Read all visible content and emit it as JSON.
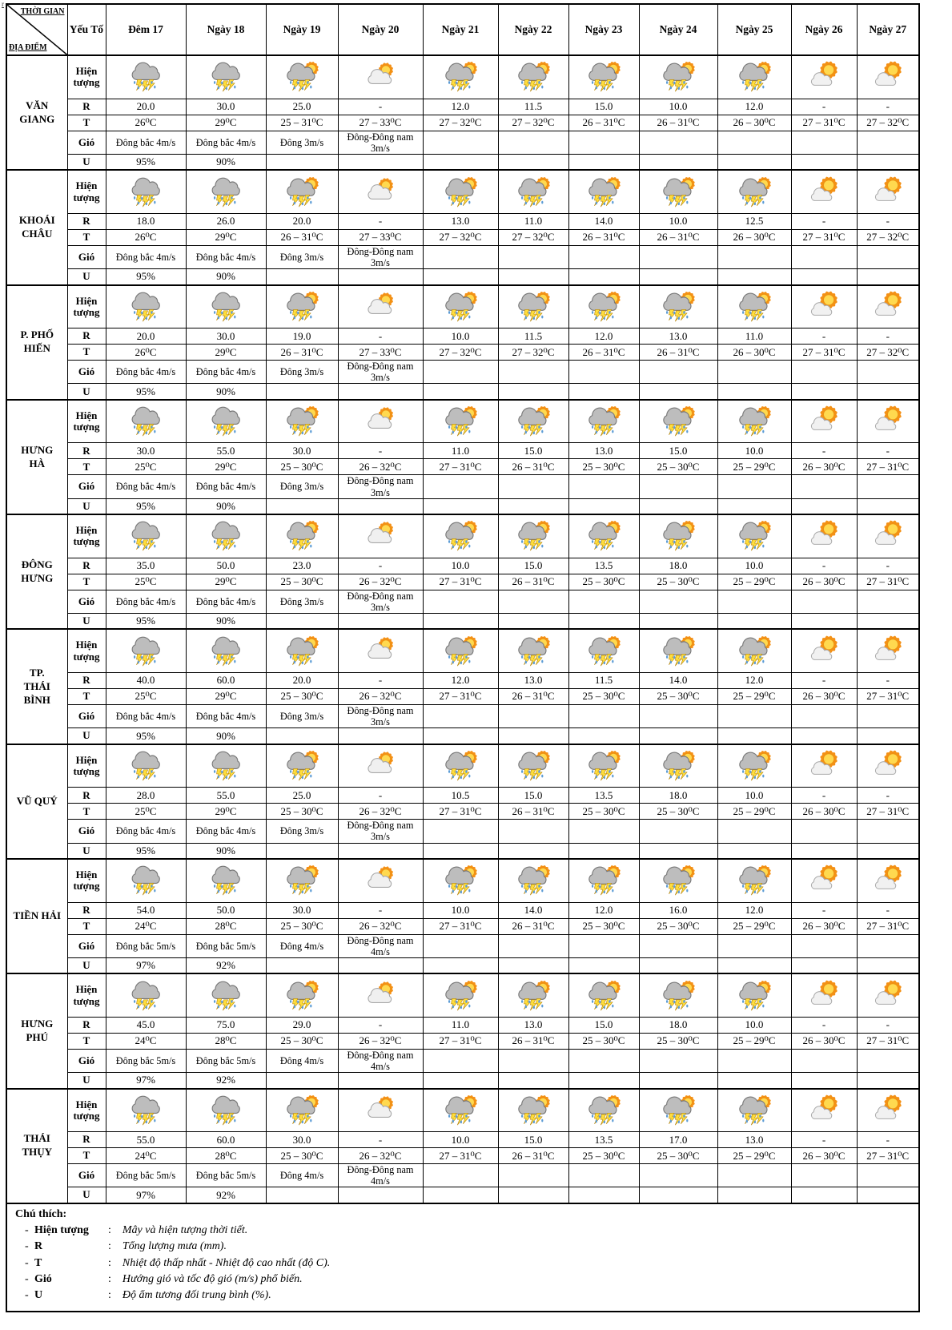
{
  "page": {
    "corner_mark": "r"
  },
  "colors": {
    "border": "#000000",
    "storm_cloud": "#BDBDBD",
    "pale_cloud": "#F0F0F0",
    "lightning": "#FFDE3C",
    "rain_drop": "#5B9BD5",
    "sun_core": "#FFD94F",
    "sun_rays": "#F49116"
  },
  "table": {
    "corner": {
      "top_label": "THỜI GIAN",
      "bottom_label": "ĐỊA ĐIỂM"
    },
    "factor_header": "Yếu Tố",
    "date_headers": [
      "Đêm 17",
      "Ngày 18",
      "Ngày 19",
      "Ngày 20",
      "Ngày 21",
      "Ngày 22",
      "Ngày 23",
      "Ngày 24",
      "Ngày 25",
      "Ngày 26",
      "Ngày 27"
    ],
    "row_labels": {
      "phenomenon": "Hiện\ntượng",
      "rain": "R",
      "temperature": "T",
      "wind": "Gió",
      "humidity": "U"
    },
    "icon_pattern": [
      "storm",
      "storm",
      "storm-sun",
      "cloud-sun",
      "storm-sun",
      "storm-sun",
      "storm-sun",
      "storm-sun",
      "storm-sun",
      "sun-cloud",
      "sun-cloud"
    ],
    "icon_legend": {
      "storm": "dark cloud with rain and lightning",
      "storm-sun": "sun behind dark cloud with rain and lightning",
      "cloud-sun": "sun behind pale cloud",
      "sun-cloud": "sun with small pale cloud"
    },
    "locations": [
      {
        "name": "VĂN\nGIANG",
        "R": [
          "20.0",
          "30.0",
          "25.0",
          "-",
          "12.0",
          "11.5",
          "15.0",
          "10.0",
          "12.0",
          "-",
          "-"
        ],
        "T": [
          "26⁰C",
          "29⁰C",
          "25 – 31⁰C",
          "27 – 33⁰C",
          "27 – 32⁰C",
          "27 – 32⁰C",
          "26 – 31⁰C",
          "26 – 31⁰C",
          "26 – 30⁰C",
          "27 – 31⁰C",
          "27 – 32⁰C"
        ],
        "wind": [
          "Đông bắc 4m/s",
          "Đông bắc 4m/s",
          "Đông 3m/s",
          "Đông-Đông nam\n3m/s",
          "",
          "",
          "",
          "",
          "",
          "",
          ""
        ],
        "U": [
          "95%",
          "90%",
          "",
          "",
          "",
          "",
          "",
          "",
          "",
          "",
          ""
        ]
      },
      {
        "name": "KHOÁI\nCHÂU",
        "R": [
          "18.0",
          "26.0",
          "20.0",
          "-",
          "13.0",
          "11.0",
          "14.0",
          "10.0",
          "12.5",
          "-",
          "-"
        ],
        "T": [
          "26⁰C",
          "29⁰C",
          "26 – 31⁰C",
          "27 – 33⁰C",
          "27 – 32⁰C",
          "27 – 32⁰C",
          "26 – 31⁰C",
          "26 – 31⁰C",
          "26 – 30⁰C",
          "27 – 31⁰C",
          "27 – 32⁰C"
        ],
        "wind": [
          "Đông bắc 4m/s",
          "Đông bắc 4m/s",
          "Đông 3m/s",
          "Đông-Đông nam\n3m/s",
          "",
          "",
          "",
          "",
          "",
          "",
          ""
        ],
        "U": [
          "95%",
          "90%",
          "",
          "",
          "",
          "",
          "",
          "",
          "",
          "",
          ""
        ]
      },
      {
        "name": "P. PHỐ\nHIẾN",
        "R": [
          "20.0",
          "30.0",
          "19.0",
          "-",
          "10.0",
          "11.5",
          "12.0",
          "13.0",
          "11.0",
          "-",
          "-"
        ],
        "T": [
          "26⁰C",
          "29⁰C",
          "26 – 31⁰C",
          "27 – 33⁰C",
          "27 – 32⁰C",
          "27 – 32⁰C",
          "26 – 31⁰C",
          "26 – 31⁰C",
          "26 – 30⁰C",
          "27 – 31⁰C",
          "27 – 32⁰C"
        ],
        "wind": [
          "Đông bắc 4m/s",
          "Đông bắc 4m/s",
          "Đông 3m/s",
          "Đông-Đông nam\n3m/s",
          "",
          "",
          "",
          "",
          "",
          "",
          ""
        ],
        "U": [
          "95%",
          "90%",
          "",
          "",
          "",
          "",
          "",
          "",
          "",
          "",
          ""
        ]
      },
      {
        "name": "HƯNG\nHÀ",
        "R": [
          "30.0",
          "55.0",
          "30.0",
          "-",
          "11.0",
          "15.0",
          "13.0",
          "15.0",
          "10.0",
          "-",
          "-"
        ],
        "T": [
          "25⁰C",
          "29⁰C",
          "25 – 30⁰C",
          "26 – 32⁰C",
          "27 – 31⁰C",
          "26 – 31⁰C",
          "25 – 30⁰C",
          "25 – 30⁰C",
          "25 – 29⁰C",
          "26 – 30⁰C",
          "27 – 31⁰C"
        ],
        "wind": [
          "Đông bắc 4m/s",
          "Đông bắc 4m/s",
          "Đông 3m/s",
          "Đông-Đông nam\n3m/s",
          "",
          "",
          "",
          "",
          "",
          "",
          ""
        ],
        "U": [
          "95%",
          "90%",
          "",
          "",
          "",
          "",
          "",
          "",
          "",
          "",
          ""
        ]
      },
      {
        "name": "ĐÔNG\nHƯNG",
        "R": [
          "35.0",
          "50.0",
          "23.0",
          "-",
          "10.0",
          "15.0",
          "13.5",
          "18.0",
          "10.0",
          "-",
          "-"
        ],
        "T": [
          "25⁰C",
          "29⁰C",
          "25 – 30⁰C",
          "26 – 32⁰C",
          "27 – 31⁰C",
          "26 – 31⁰C",
          "25 – 30⁰C",
          "25 – 30⁰C",
          "25 – 29⁰C",
          "26 – 30⁰C",
          "27 – 31⁰C"
        ],
        "wind": [
          "Đông bắc 4m/s",
          "Đông bắc 4m/s",
          "Đông 3m/s",
          "Đông-Đông nam\n3m/s",
          "",
          "",
          "",
          "",
          "",
          "",
          ""
        ],
        "U": [
          "95%",
          "90%",
          "",
          "",
          "",
          "",
          "",
          "",
          "",
          "",
          ""
        ]
      },
      {
        "name": "TP.\nTHÁI\nBÌNH",
        "R": [
          "40.0",
          "60.0",
          "20.0",
          "-",
          "12.0",
          "13.0",
          "11.5",
          "14.0",
          "12.0",
          "-",
          "-"
        ],
        "T": [
          "25⁰C",
          "29⁰C",
          "25 – 30⁰C",
          "26 – 32⁰C",
          "27 – 31⁰C",
          "26 – 31⁰C",
          "25 – 30⁰C",
          "25 – 30⁰C",
          "25 – 29⁰C",
          "26 – 30⁰C",
          "27 – 31⁰C"
        ],
        "wind": [
          "Đông bắc 4m/s",
          "Đông bắc 4m/s",
          "Đông 3m/s",
          "Đông-Đông nam\n3m/s",
          "",
          "",
          "",
          "",
          "",
          "",
          ""
        ],
        "U": [
          "95%",
          "90%",
          "",
          "",
          "",
          "",
          "",
          "",
          "",
          "",
          ""
        ]
      },
      {
        "name": "VŨ QUÝ",
        "R": [
          "28.0",
          "55.0",
          "25.0",
          "-",
          "10.5",
          "15.0",
          "13.5",
          "18.0",
          "10.0",
          "-",
          "-"
        ],
        "T": [
          "25⁰C",
          "29⁰C",
          "25 – 30⁰C",
          "26 – 32⁰C",
          "27 – 31⁰C",
          "26 – 31⁰C",
          "25 – 30⁰C",
          "25 – 30⁰C",
          "25 – 29⁰C",
          "26 – 30⁰C",
          "27 – 31⁰C"
        ],
        "wind": [
          "Đông bắc 4m/s",
          "Đông bắc 4m/s",
          "Đông 3m/s",
          "Đông-Đông nam\n3m/s",
          "",
          "",
          "",
          "",
          "",
          "",
          ""
        ],
        "U": [
          "95%",
          "90%",
          "",
          "",
          "",
          "",
          "",
          "",
          "",
          "",
          ""
        ]
      },
      {
        "name": "TIỀN HẢI",
        "R": [
          "54.0",
          "50.0",
          "30.0",
          "-",
          "10.0",
          "14.0",
          "12.0",
          "16.0",
          "12.0",
          "-",
          "-"
        ],
        "T": [
          "24⁰C",
          "28⁰C",
          "25 – 30⁰C",
          "26 – 32⁰C",
          "27 – 31⁰C",
          "26 – 31⁰C",
          "25 – 30⁰C",
          "25 – 30⁰C",
          "25 – 29⁰C",
          "26 – 30⁰C",
          "27 – 31⁰C"
        ],
        "wind": [
          "Đông bắc 5m/s",
          "Đông bắc 5m/s",
          "Đông 4m/s",
          "Đông-Đông nam\n4m/s",
          "",
          "",
          "",
          "",
          "",
          "",
          ""
        ],
        "U": [
          "97%",
          "92%",
          "",
          "",
          "",
          "",
          "",
          "",
          "",
          "",
          ""
        ]
      },
      {
        "name": "HƯNG\nPHÚ",
        "R": [
          "45.0",
          "75.0",
          "29.0",
          "-",
          "11.0",
          "13.0",
          "15.0",
          "18.0",
          "10.0",
          "-",
          "-"
        ],
        "T": [
          "24⁰C",
          "28⁰C",
          "25 – 30⁰C",
          "26 – 32⁰C",
          "27 – 31⁰C",
          "26 – 31⁰C",
          "25 – 30⁰C",
          "25 – 30⁰C",
          "25 – 29⁰C",
          "26 – 30⁰C",
          "27 – 31⁰C"
        ],
        "wind": [
          "Đông bắc 5m/s",
          "Đông bắc 5m/s",
          "Đông 4m/s",
          "Đông-Đông nam\n4m/s",
          "",
          "",
          "",
          "",
          "",
          "",
          ""
        ],
        "U": [
          "97%",
          "92%",
          "",
          "",
          "",
          "",
          "",
          "",
          "",
          "",
          ""
        ]
      },
      {
        "name": "THÁI\nTHỤY",
        "R": [
          "55.0",
          "60.0",
          "30.0",
          "-",
          "10.0",
          "15.0",
          "13.5",
          "17.0",
          "13.0",
          "-",
          "-"
        ],
        "T": [
          "24⁰C",
          "28⁰C",
          "25 – 30⁰C",
          "26 – 32⁰C",
          "27 – 31⁰C",
          "26 – 31⁰C",
          "25 – 30⁰C",
          "25 – 30⁰C",
          "25 – 29⁰C",
          "26 – 30⁰C",
          "27 – 31⁰C"
        ],
        "wind": [
          "Đông bắc 5m/s",
          "Đông bắc 5m/s",
          "Đông 4m/s",
          "Đông-Đông nam\n4m/s",
          "",
          "",
          "",
          "",
          "",
          "",
          ""
        ],
        "U": [
          "97%",
          "92%",
          "",
          "",
          "",
          "",
          "",
          "",
          "",
          "",
          ""
        ]
      }
    ]
  },
  "legend": {
    "title": "Chú thích:",
    "bullet": "-",
    "separator": ":",
    "items": [
      {
        "label": "Hiện tượng",
        "desc": "Mây và hiện tượng thời tiết."
      },
      {
        "label": "R",
        "desc": "Tổng lượng mưa (mm)."
      },
      {
        "label": "T",
        "desc": "Nhiệt độ thấp nhất - Nhiệt độ cao nhất (độ C)."
      },
      {
        "label": "Gió",
        "desc": "Hướng gió và tốc độ gió (m/s) phổ biến."
      },
      {
        "label": "U",
        "desc": "Độ ẩm tương đối trung bình (%)."
      }
    ]
  }
}
